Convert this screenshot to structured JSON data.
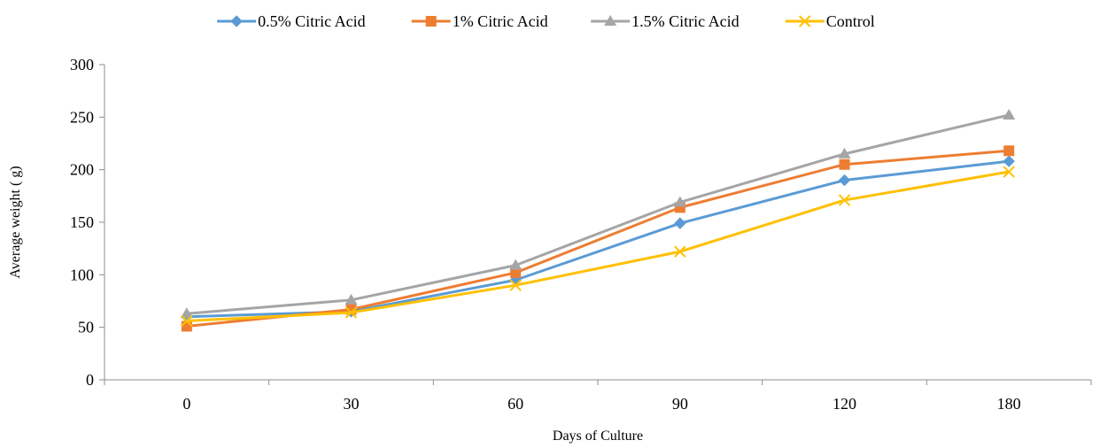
{
  "chart_data": {
    "type": "line",
    "title": "",
    "xlabel": "Days of Culture",
    "ylabel": "Average weight ( g)",
    "x_categories": [
      "0",
      "30",
      "60",
      "90",
      "120",
      "180"
    ],
    "ylim": [
      0,
      300
    ],
    "yticks": [
      0,
      50,
      100,
      150,
      200,
      250,
      300
    ],
    "grid": false,
    "legend_position": "top",
    "series": [
      {
        "name": "0.5% Citric Acid",
        "color": "#5b9bd5",
        "marker": "diamond",
        "values": [
          60,
          65,
          95,
          149,
          190,
          208
        ]
      },
      {
        "name": "1% Citric Acid",
        "color": "#ed7d31",
        "marker": "square",
        "values": [
          51,
          67,
          102,
          164,
          205,
          218
        ]
      },
      {
        "name": "1.5% Citric Acid",
        "color": "#a5a5a5",
        "marker": "triangle",
        "values": [
          63,
          76,
          109,
          169,
          215,
          252
        ]
      },
      {
        "name": "Control",
        "color": "#ffc000",
        "marker": "x",
        "values": [
          56,
          64,
          90,
          122,
          171,
          198
        ]
      }
    ]
  }
}
